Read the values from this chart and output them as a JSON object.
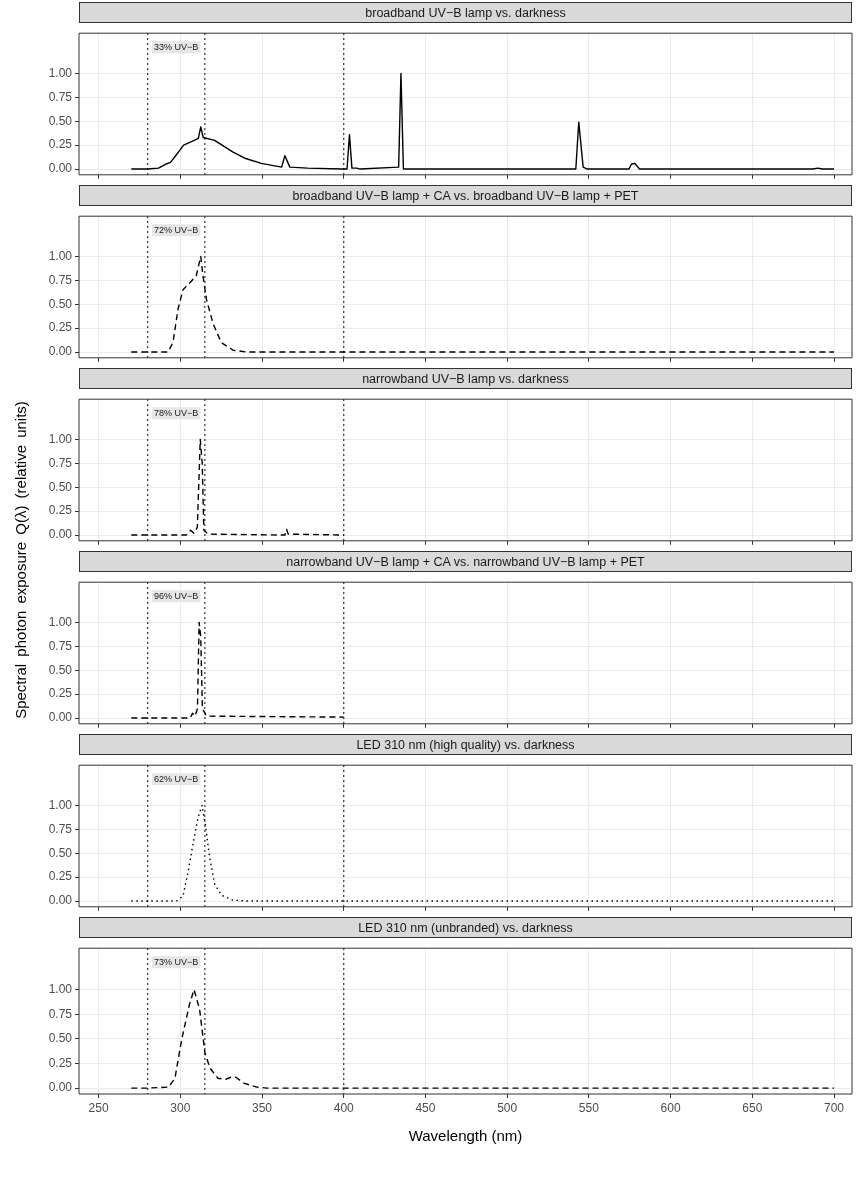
{
  "chart_data": [
    {
      "type": "line",
      "title": "broadband UV−B lamp vs. darkness",
      "line_style": "solid",
      "grid": true,
      "tick_labels": "y",
      "xlim": [
        238,
        711
      ],
      "xticks": [
        250,
        300,
        350,
        400,
        450,
        500,
        550,
        600,
        650,
        700
      ],
      "ylim": [
        -0.06,
        1.42
      ],
      "yticks": [
        {
          "value": 0,
          "label": "0.00"
        },
        {
          "value": 0.25,
          "label": "0.25"
        },
        {
          "value": 0.5,
          "label": "0.50"
        },
        {
          "value": 0.75,
          "label": "0.75"
        },
        {
          "value": 1,
          "label": "1.00"
        }
      ],
      "ref_lines": [
        {
          "axis": "x",
          "value": 280,
          "color": "#000000",
          "line_style": "dotted"
        },
        {
          "axis": "x",
          "value": 315,
          "color": "#000000",
          "line_style": "dotted"
        },
        {
          "axis": "x",
          "value": 400,
          "color": "#000000",
          "line_style": "dotted"
        }
      ],
      "annotations": [
        "33% UV−B"
      ],
      "series": [
        {
          "color": "#000000",
          "x": [
            270,
            280,
            286.6,
            291,
            294,
            297.6,
            302,
            308.5,
            311,
            312.5,
            314,
            321,
            332,
            340,
            349.5,
            362,
            364,
            367,
            378,
            399,
            402,
            403.5,
            405,
            408,
            410,
            433.6,
            435,
            436.5,
            542,
            543.8,
            546.5,
            549,
            574.5,
            576,
            578,
            581,
            687,
            690,
            693,
            700
          ],
          "values": [
            0,
            0,
            0.01,
            0.05,
            0.07,
            0.15,
            0.25,
            0.3,
            0.32,
            0.44,
            0.33,
            0.3,
            0.18,
            0.11,
            0.06,
            0.02,
            0.14,
            0.02,
            0.01,
            0,
            0,
            0.36,
            0.01,
            0.01,
            0,
            0.02,
            1,
            0,
            0,
            0.49,
            0.02,
            0,
            0,
            0.05,
            0.06,
            0,
            0,
            0.01,
            0,
            0
          ]
        }
      ]
    },
    {
      "type": "line",
      "title": "broadband UV−B lamp + CA vs. broadband UV−B lamp + PET",
      "line_style": "dashed",
      "grid": true,
      "tick_labels": "y",
      "xlim": [
        238,
        711
      ],
      "xticks": [
        250,
        300,
        350,
        400,
        450,
        500,
        550,
        600,
        650,
        700
      ],
      "ylim": [
        -0.06,
        1.42
      ],
      "yticks": [
        {
          "value": 0,
          "label": "0.00"
        },
        {
          "value": 0.25,
          "label": "0.25"
        },
        {
          "value": 0.5,
          "label": "0.50"
        },
        {
          "value": 0.75,
          "label": "0.75"
        },
        {
          "value": 1,
          "label": "1.00"
        }
      ],
      "ref_lines": [
        {
          "axis": "x",
          "value": 280,
          "color": "#000000",
          "line_style": "dotted"
        },
        {
          "axis": "x",
          "value": 315,
          "color": "#000000",
          "line_style": "dotted"
        },
        {
          "axis": "x",
          "value": 400,
          "color": "#000000",
          "line_style": "dotted"
        }
      ],
      "annotations": [
        "72% UV−B"
      ],
      "series": [
        {
          "color": "#000000",
          "x": [
            270,
            292.4,
            295.5,
            298.6,
            301.6,
            306.7,
            309.8,
            312.5,
            314,
            316,
            320,
            325,
            332.2,
            340.5,
            700
          ],
          "values": [
            0,
            0,
            0.1,
            0.45,
            0.65,
            0.74,
            0.8,
            1,
            0.78,
            0.55,
            0.3,
            0.1,
            0.02,
            0,
            0
          ]
        }
      ]
    },
    {
      "type": "line",
      "title": "narrowband UV−B lamp vs. darkness",
      "line_style": "dashed",
      "grid": true,
      "tick_labels": "y",
      "xlim": [
        238,
        711
      ],
      "xticks": [
        250,
        300,
        350,
        400,
        450,
        500,
        550,
        600,
        650,
        700
      ],
      "ylim": [
        -0.06,
        1.42
      ],
      "yticks": [
        {
          "value": 0,
          "label": "0.00"
        },
        {
          "value": 0.25,
          "label": "0.25"
        },
        {
          "value": 0.5,
          "label": "0.50"
        },
        {
          "value": 0.75,
          "label": "0.75"
        },
        {
          "value": 1,
          "label": "1.00"
        }
      ],
      "ref_lines": [
        {
          "axis": "x",
          "value": 280,
          "color": "#000000",
          "line_style": "dotted"
        },
        {
          "axis": "x",
          "value": 315,
          "color": "#000000",
          "line_style": "dotted"
        },
        {
          "axis": "x",
          "value": 400,
          "color": "#000000",
          "line_style": "dotted"
        }
      ],
      "annotations": [
        "78% UV−B"
      ],
      "series": [
        {
          "color": "#000000",
          "x": [
            270,
            303.7,
            306.3,
            308.3,
            310.4,
            312.2,
            313.4,
            314.4,
            317,
            364,
            365,
            366,
            400
          ],
          "values": [
            0,
            0,
            0.05,
            0.02,
            0.08,
            1,
            0.75,
            0.05,
            0.01,
            0,
            0.06,
            0.01,
            0
          ]
        }
      ]
    },
    {
      "type": "line",
      "title": "narrowband UV−B lamp + CA vs. narrowband UV−B lamp + PET",
      "ylabel": "Spectral photon exposure Q(λ) (relative units)",
      "line_style": "dashed",
      "grid": true,
      "tick_labels": "y",
      "xlim": [
        238,
        711
      ],
      "xticks": [
        250,
        300,
        350,
        400,
        450,
        500,
        550,
        600,
        650,
        700
      ],
      "ylim": [
        -0.06,
        1.42
      ],
      "yticks": [
        {
          "value": 0,
          "label": "0.00"
        },
        {
          "value": 0.25,
          "label": "0.25"
        },
        {
          "value": 0.5,
          "label": "0.50"
        },
        {
          "value": 0.75,
          "label": "0.75"
        },
        {
          "value": 1,
          "label": "1.00"
        }
      ],
      "ref_lines": [
        {
          "axis": "x",
          "value": 280,
          "color": "#000000",
          "line_style": "dotted"
        },
        {
          "axis": "x",
          "value": 315,
          "color": "#000000",
          "line_style": "dotted"
        },
        {
          "axis": "x",
          "value": 400,
          "color": "#000000",
          "line_style": "dotted"
        }
      ],
      "annotations": [
        "96% UV−B"
      ],
      "series": [
        {
          "color": "#000000",
          "x": [
            270,
            306,
            307.5,
            309,
            310.5,
            311.5,
            312.5,
            313.5,
            316,
            400
          ],
          "values": [
            0,
            0,
            0.05,
            0.02,
            0.1,
            1,
            0.85,
            0.1,
            0.02,
            0.01
          ]
        }
      ]
    },
    {
      "type": "line",
      "title": "LED 310 nm (high quality) vs. darkness",
      "line_style": "dotted",
      "grid": true,
      "tick_labels": "y",
      "xlim": [
        238,
        711
      ],
      "xticks": [
        250,
        300,
        350,
        400,
        450,
        500,
        550,
        600,
        650,
        700
      ],
      "ylim": [
        -0.06,
        1.42
      ],
      "yticks": [
        {
          "value": 0,
          "label": "0.00"
        },
        {
          "value": 0.25,
          "label": "0.25"
        },
        {
          "value": 0.5,
          "label": "0.50"
        },
        {
          "value": 0.75,
          "label": "0.75"
        },
        {
          "value": 1,
          "label": "1.00"
        }
      ],
      "ref_lines": [
        {
          "axis": "x",
          "value": 280,
          "color": "#000000",
          "line_style": "dotted"
        },
        {
          "axis": "x",
          "value": 315,
          "color": "#000000",
          "line_style": "dotted"
        },
        {
          "axis": "x",
          "value": 400,
          "color": "#000000",
          "line_style": "dotted"
        }
      ],
      "annotations": [
        "62% UV−B"
      ],
      "series": [
        {
          "color": "#000000",
          "x": [
            270,
            297.6,
            301.6,
            304.7,
            307.8,
            310.8,
            313.3,
            315.3,
            318,
            321,
            325.2,
            332.2,
            340.5,
            700
          ],
          "values": [
            0,
            0,
            0.05,
            0.3,
            0.6,
            0.87,
            1,
            0.8,
            0.45,
            0.18,
            0.06,
            0.01,
            0,
            0
          ]
        }
      ]
    },
    {
      "type": "line",
      "title": "LED 310 nm (unbranded) vs. darkness",
      "xlabel": "Wavelength (nm)",
      "line_style": "dashed",
      "grid": true,
      "xlim": [
        238,
        711
      ],
      "xticks": [
        250,
        300,
        350,
        400,
        450,
        500,
        550,
        600,
        650,
        700
      ],
      "ylim": [
        -0.06,
        1.42
      ],
      "yticks": [
        {
          "value": 0,
          "label": "0.00"
        },
        {
          "value": 0.25,
          "label": "0.25"
        },
        {
          "value": 0.5,
          "label": "0.50"
        },
        {
          "value": 0.75,
          "label": "0.75"
        },
        {
          "value": 1,
          "label": "1.00"
        }
      ],
      "ref_lines": [
        {
          "axis": "x",
          "value": 280,
          "color": "#000000",
          "line_style": "dotted"
        },
        {
          "axis": "x",
          "value": 315,
          "color": "#000000",
          "line_style": "dotted"
        },
        {
          "axis": "x",
          "value": 400,
          "color": "#000000",
          "line_style": "dotted"
        }
      ],
      "annotations": [
        "73% UV−B"
      ],
      "series": [
        {
          "color": "#000000",
          "x": [
            270,
            280,
            292.9,
            296.7,
            300.8,
            305.6,
            308.4,
            311.8,
            315.1,
            318.3,
            323,
            327.8,
            331,
            334,
            338.8,
            346.8,
            353,
            700
          ],
          "values": [
            0,
            0,
            0.01,
            0.1,
            0.49,
            0.85,
            1,
            0.8,
            0.35,
            0.2,
            0.1,
            0.09,
            0.11,
            0.11,
            0.05,
            0.01,
            0,
            0
          ]
        }
      ]
    }
  ]
}
